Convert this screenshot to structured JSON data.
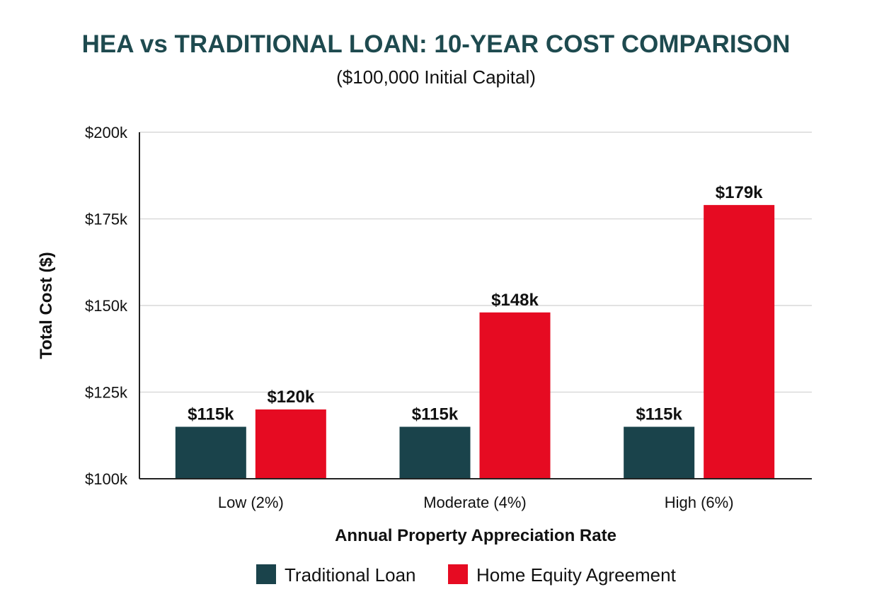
{
  "chart_data": {
    "type": "bar",
    "title": "HEA vs TRADITIONAL LOAN: 10-YEAR COST COMPARISON",
    "subtitle": "($100,000 Initial Capital)",
    "xlabel": "Annual Property Appreciation Rate",
    "ylabel": "Total Cost ($)",
    "ylim": [
      100000,
      200000
    ],
    "yticks": [
      100000,
      125000,
      150000,
      175000,
      200000
    ],
    "ytick_labels": [
      "$100k",
      "$125k",
      "$150k",
      "$175k",
      "$200k"
    ],
    "grid": true,
    "legend_position": "bottom",
    "categories": [
      "Low (2%)",
      "Moderate (4%)",
      "High (6%)"
    ],
    "series": [
      {
        "name": "Traditional Loan",
        "color": "#1a434b",
        "values": [
          115000,
          115000,
          115000
        ],
        "labels": [
          "$115k",
          "$115k",
          "$115k"
        ]
      },
      {
        "name": "Home Equity Agreement",
        "color": "#e60b22",
        "values": [
          120000,
          148000,
          179000
        ],
        "labels": [
          "$120k",
          "$148k",
          "$179k"
        ]
      }
    ]
  }
}
